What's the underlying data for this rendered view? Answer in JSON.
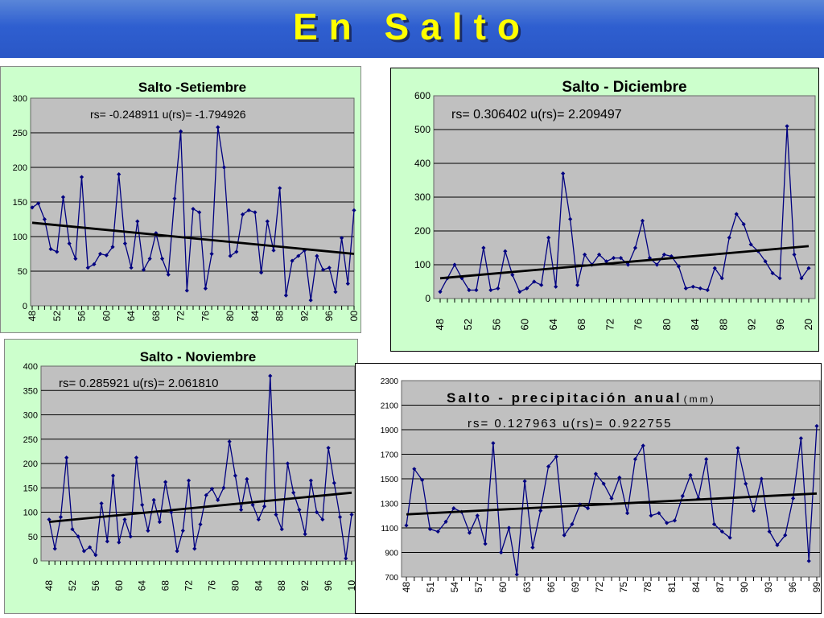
{
  "header": {
    "title": "En Salto"
  },
  "colors": {
    "banner": "#2f5fd0",
    "title_text": "#ffff00",
    "green_frame": "#ccffcc",
    "plot_bg": "#c0c0c0",
    "series": "#000080",
    "trend": "#000000"
  },
  "chart_data": [
    {
      "id": "setiembre",
      "type": "line",
      "title": "Salto -Setiembre",
      "stat_text": "rs= -0.248911 u(rs)= -1.794926",
      "ylim": [
        0,
        300
      ],
      "yticks": [
        "0",
        "50",
        "100",
        "150",
        "200",
        "250",
        "300"
      ],
      "xticks": [
        "48",
        "52",
        "56",
        "60",
        "64",
        "68",
        "72",
        "76",
        "80",
        "84",
        "88",
        "92",
        "96",
        "00"
      ],
      "grid": true,
      "legend": "none",
      "values": [
        142,
        148,
        125,
        82,
        78,
        157,
        90,
        68,
        186,
        55,
        60,
        75,
        73,
        85,
        190,
        90,
        55,
        122,
        52,
        68,
        105,
        68,
        45,
        155,
        252,
        22,
        140,
        135,
        25,
        75,
        258,
        200,
        72,
        78,
        132,
        138,
        135,
        48,
        122,
        80,
        170,
        15,
        65,
        72,
        80,
        8,
        72,
        52,
        55,
        20,
        98,
        32,
        138
      ],
      "trend": [
        120,
        75
      ]
    },
    {
      "id": "diciembre",
      "type": "line",
      "title": "Salto - Diciembre",
      "stat_text": "rs= 0.306402 u(rs)= 2.209497",
      "ylim": [
        0,
        600
      ],
      "yticks": [
        "0",
        "100",
        "200",
        "300",
        "400",
        "500",
        "600"
      ],
      "xticks": [
        "48",
        "52",
        "56",
        "60",
        "64",
        "68",
        "72",
        "76",
        "80",
        "84",
        "88",
        "92",
        "96",
        "20"
      ],
      "grid": true,
      "legend": "none",
      "values": [
        20,
        60,
        100,
        60,
        25,
        25,
        150,
        25,
        30,
        140,
        70,
        20,
        30,
        50,
        40,
        180,
        35,
        370,
        235,
        40,
        130,
        100,
        130,
        110,
        120,
        120,
        100,
        150,
        230,
        120,
        100,
        130,
        125,
        95,
        30,
        35,
        30,
        25,
        90,
        60,
        180,
        250,
        220,
        160,
        140,
        110,
        75,
        60,
        510,
        130,
        60,
        90
      ],
      "trend": [
        60,
        155
      ]
    },
    {
      "id": "noviembre",
      "type": "line",
      "title": "Salto - Noviembre",
      "stat_text": "rs= 0.285921 u(rs)= 2.061810",
      "ylim": [
        0,
        400
      ],
      "yticks": [
        "0",
        "50",
        "100",
        "150",
        "200",
        "250",
        "300",
        "350",
        "400"
      ],
      "xticks": [
        "48",
        "52",
        "56",
        "60",
        "64",
        "68",
        "72",
        "76",
        "80",
        "84",
        "88",
        "92",
        "96",
        "10"
      ],
      "grid": true,
      "legend": "none",
      "values": [
        85,
        25,
        90,
        212,
        65,
        50,
        20,
        28,
        12,
        118,
        40,
        175,
        38,
        85,
        50,
        212,
        115,
        62,
        125,
        80,
        162,
        100,
        20,
        62,
        165,
        25,
        75,
        135,
        148,
        125,
        150,
        245,
        175,
        105,
        168,
        115,
        85,
        112,
        380,
        95,
        65,
        200,
        140,
        105,
        55,
        165,
        100,
        85,
        232,
        160,
        90,
        5,
        95
      ],
      "trend": [
        80,
        140
      ]
    },
    {
      "id": "anual",
      "type": "line",
      "title": "Salto - precipitación anual",
      "title_unit": "(mm)",
      "stat_text": "rs= 0.127963 u(rs)= 0.922755",
      "ylim": [
        700,
        2300
      ],
      "yticks": [
        "700",
        "900",
        "1100",
        "1300",
        "1500",
        "1700",
        "1900",
        "2100",
        "2300"
      ],
      "xticks": [
        "48",
        "51",
        "54",
        "57",
        "60",
        "63",
        "66",
        "69",
        "72",
        "75",
        "78",
        "81",
        "84",
        "87",
        "90",
        "93",
        "96",
        "99"
      ],
      "grid": true,
      "legend": "none",
      "values": [
        1120,
        1580,
        1490,
        1090,
        1070,
        1150,
        1260,
        1230,
        1060,
        1200,
        970,
        1790,
        900,
        1100,
        720,
        1480,
        940,
        1240,
        1600,
        1680,
        1040,
        1130,
        1290,
        1260,
        1540,
        1460,
        1340,
        1510,
        1220,
        1660,
        1770,
        1200,
        1220,
        1140,
        1160,
        1360,
        1530,
        1340,
        1660,
        1130,
        1070,
        1020,
        1750,
        1460,
        1240,
        1500,
        1070,
        960,
        1040,
        1340,
        1830,
        830,
        1930
      ],
      "trend": [
        1210,
        1380
      ]
    }
  ]
}
